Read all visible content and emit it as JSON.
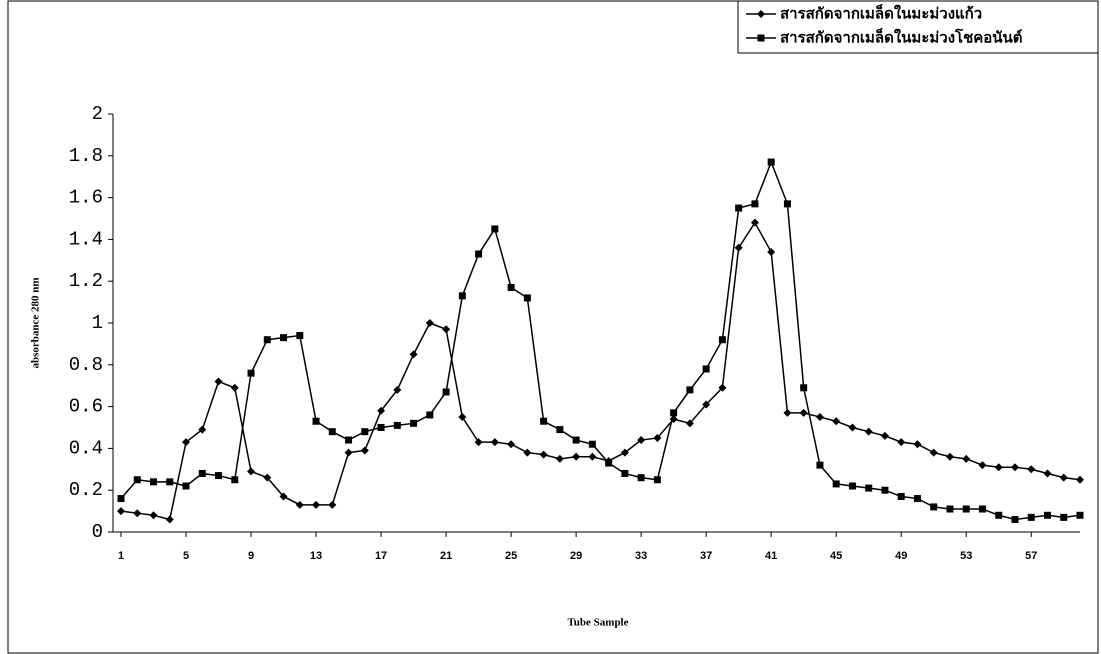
{
  "chart_data": {
    "type": "line",
    "x_label": "Tube Sample",
    "y_label": "absorbance 280 nm",
    "x": [
      1,
      2,
      3,
      4,
      5,
      6,
      7,
      8,
      9,
      10,
      11,
      12,
      13,
      14,
      15,
      16,
      17,
      18,
      19,
      20,
      21,
      22,
      23,
      24,
      25,
      26,
      27,
      28,
      29,
      30,
      31,
      32,
      33,
      34,
      35,
      36,
      37,
      38,
      39,
      40,
      41,
      42,
      43,
      44,
      45,
      46,
      47,
      48,
      49,
      50,
      51,
      52,
      53,
      54,
      55,
      56,
      57,
      58,
      59,
      60
    ],
    "xlim": [
      1,
      60
    ],
    "xticks": [
      1,
      5,
      9,
      13,
      17,
      21,
      25,
      29,
      33,
      37,
      41,
      45,
      49,
      53,
      57
    ],
    "ylim": [
      0,
      2
    ],
    "yticks": [
      0,
      0.2,
      0.4,
      0.6,
      0.8,
      1,
      1.2,
      1.4,
      1.6,
      1.8,
      2
    ],
    "legend": "top-right",
    "series": [
      {
        "name": "สารสกัดจากเมล็ดในมะม่วงแก้ว",
        "color": "#000000",
        "marker": "diamond",
        "values": [
          0.1,
          0.09,
          0.08,
          0.06,
          0.43,
          0.49,
          0.72,
          0.69,
          0.29,
          0.26,
          0.17,
          0.13,
          0.13,
          0.13,
          0.38,
          0.39,
          0.58,
          0.68,
          0.85,
          1.0,
          0.97,
          0.55,
          0.43,
          0.43,
          0.42,
          0.38,
          0.37,
          0.35,
          0.36,
          0.36,
          0.34,
          0.38,
          0.44,
          0.45,
          0.54,
          0.52,
          0.61,
          0.69,
          1.36,
          1.48,
          1.34,
          0.57,
          0.57,
          0.55,
          0.53,
          0.5,
          0.48,
          0.46,
          0.43,
          0.42,
          0.38,
          0.36,
          0.35,
          0.32,
          0.31,
          0.31,
          0.3,
          0.28,
          0.26,
          0.25
        ]
      },
      {
        "name": "สารสกัดจากเมล็ดในมะม่วงโชคอนันต์",
        "color": "#000000",
        "marker": "square",
        "values": [
          0.16,
          0.25,
          0.24,
          0.24,
          0.22,
          0.28,
          0.27,
          0.25,
          0.76,
          0.92,
          0.93,
          0.94,
          0.53,
          0.48,
          0.44,
          0.48,
          0.5,
          0.51,
          0.52,
          0.56,
          0.67,
          1.13,
          1.33,
          1.45,
          1.17,
          1.12,
          0.53,
          0.49,
          0.44,
          0.42,
          0.33,
          0.28,
          0.26,
          0.25,
          0.57,
          0.68,
          0.78,
          0.92,
          1.55,
          1.57,
          1.77,
          1.57,
          0.69,
          0.32,
          0.23,
          0.22,
          0.21,
          0.2,
          0.17,
          0.16,
          0.12,
          0.11,
          0.11,
          0.11,
          0.08,
          0.06,
          0.07,
          0.08,
          0.07,
          0.08
        ]
      }
    ]
  }
}
